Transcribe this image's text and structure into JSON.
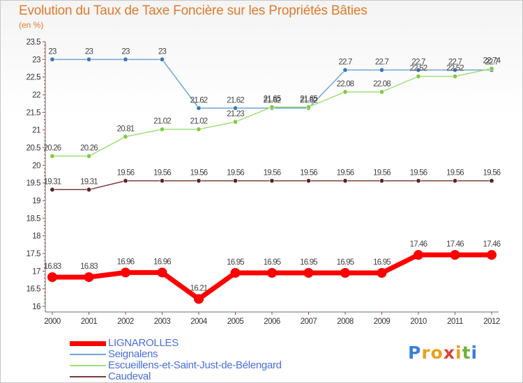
{
  "title": "Evolution du Taux de Taxe Foncière sur les Propriétés Bâties",
  "unit": "(en %)",
  "logo": {
    "letters": [
      "P",
      "r",
      "o",
      "x",
      "i",
      "t",
      "i"
    ],
    "colors": [
      "#3a7fd8",
      "#e8a21b",
      "#e8a21b",
      "#d9453a",
      "#e8a21b",
      "#6bb23c",
      "#3a7fd8"
    ]
  },
  "chart_data": {
    "type": "line",
    "x": [
      "2000",
      "2001",
      "2002",
      "2003",
      "2004",
      "2005",
      "2006",
      "2007",
      "2008",
      "2009",
      "2010",
      "2011",
      "2012"
    ],
    "ylim": [
      16,
      23.5
    ],
    "yticks": [
      "16",
      "16.5",
      "17",
      "17.5",
      "18",
      "18.5",
      "19",
      "19.5",
      "20",
      "20.5",
      "21",
      "21.5",
      "22",
      "22.5",
      "23",
      "23.5"
    ],
    "grid": false,
    "legend_position": "bottom-left",
    "series": [
      {
        "name": "LIGNAROLLES",
        "color": "#ff0000",
        "marker_color": "#ee0000",
        "width": 7,
        "values": [
          16.83,
          16.83,
          16.96,
          16.96,
          16.21,
          16.95,
          16.95,
          16.95,
          16.95,
          16.95,
          17.46,
          17.46,
          17.46
        ],
        "labels": [
          "16.83",
          "16.83",
          "16.96",
          "16.96",
          "16.21",
          "16.95",
          "16.95",
          "16.95",
          "16.95",
          "16.95",
          "17.46",
          "17.46",
          "17.46"
        ]
      },
      {
        "name": "Seignalens",
        "color": "#6fa4d6",
        "marker_color": "#3a78b8",
        "width": 1.5,
        "values": [
          23,
          23,
          23,
          23,
          21.62,
          21.62,
          21.62,
          21.62,
          22.7,
          22.7,
          22.7,
          22.7,
          22.7
        ],
        "labels": [
          "23",
          "23",
          "23",
          "23",
          "21.62",
          "21.62",
          "21.62",
          "21.62",
          "22.7",
          "22.7",
          "22.7",
          "22.7",
          "22.7"
        ]
      },
      {
        "name": "Escueillens-et-Saint-Just-de-Bélengard",
        "color": "#9fe07a",
        "marker_color": "#7fcc3a",
        "width": 1.5,
        "values": [
          20.26,
          20.26,
          20.81,
          21.02,
          21.02,
          21.23,
          21.65,
          21.65,
          22.08,
          22.08,
          22.52,
          22.52,
          22.74
        ],
        "labels": [
          "20.26",
          "20.26",
          "20.81",
          "21.02",
          "21.02",
          "21.23",
          "21.65",
          "21.65",
          "22.08",
          "22.08",
          "22.52",
          "22.52",
          "22.74"
        ]
      },
      {
        "name": "Caudeval",
        "color": "#7a3a3a",
        "marker_color": "#5e2323",
        "width": 1.5,
        "values": [
          19.31,
          19.31,
          19.56,
          19.56,
          19.56,
          19.56,
          19.56,
          19.56,
          19.56,
          19.56,
          19.56,
          19.56,
          19.56
        ],
        "labels": [
          "19.31",
          "19.31",
          "19.56",
          "19.56",
          "19.56",
          "19.56",
          "19.56",
          "19.56",
          "19.56",
          "19.56",
          "19.56",
          "19.56",
          "19.56"
        ]
      }
    ]
  }
}
